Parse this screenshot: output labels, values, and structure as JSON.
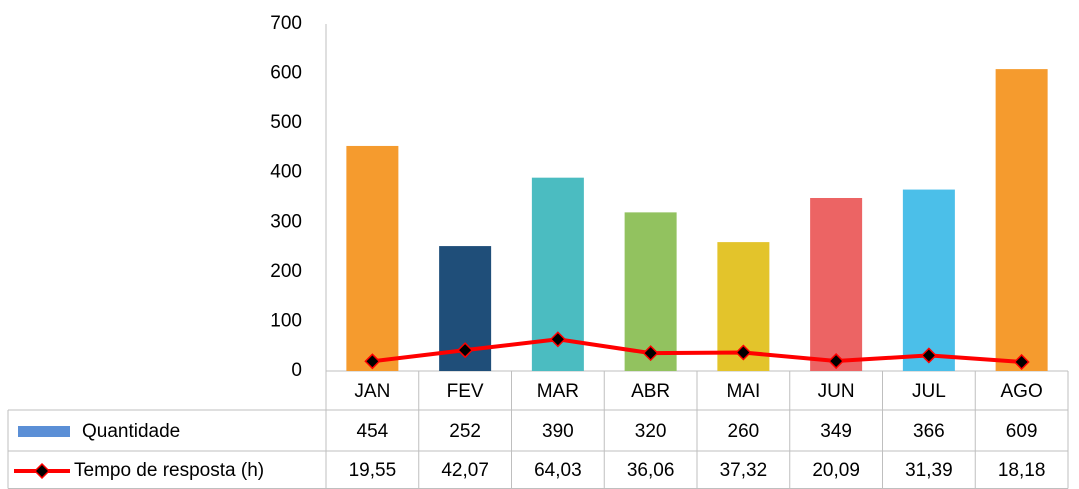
{
  "chart_data": {
    "type": "bar_line_table",
    "categories": [
      "JAN",
      "FEV",
      "MAR",
      "ABR",
      "MAI",
      "JUN",
      "JUL",
      "AGO"
    ],
    "series": [
      {
        "name": "Quantidade",
        "type": "bar",
        "color": "#5b8fd6",
        "colors": [
          "#f59b2e",
          "#1f4e79",
          "#4bbcc1",
          "#92c25f",
          "#e3c42b",
          "#ec6464",
          "#4bbfe9",
          "#f59b2e"
        ],
        "values": [
          454,
          252,
          390,
          320,
          260,
          349,
          366,
          609
        ]
      },
      {
        "name": "Tempo de resposta (h)",
        "type": "line",
        "color": "#ff0000",
        "marker_color": "#000000",
        "values": [
          19.55,
          42.07,
          64.03,
          36.06,
          37.32,
          20.09,
          31.39,
          18.18
        ],
        "value_labels": [
          "19,55",
          "42,07",
          "64,03",
          "36,06",
          "37,32",
          "20,09",
          "31,39",
          "18,18"
        ]
      }
    ],
    "ylim": [
      0,
      700
    ],
    "yticks": [
      0,
      100,
      200,
      300,
      400,
      500,
      600,
      700
    ],
    "grid": false
  }
}
